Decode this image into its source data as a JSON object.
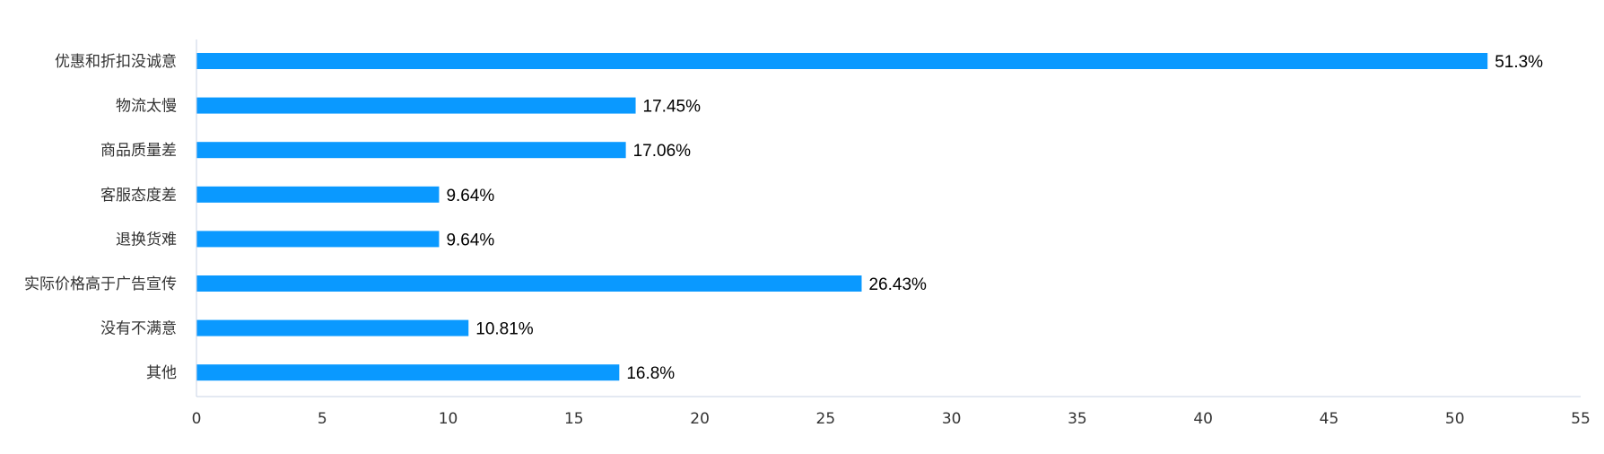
{
  "chart_data": {
    "type": "bar",
    "orientation": "horizontal",
    "categories": [
      "优惠和折扣没诚意",
      "物流太慢",
      "商品质量差",
      "客服态度差",
      "退换货难",
      "实际价格高于广告宣传",
      "没有不满意",
      "其他"
    ],
    "values": [
      51.3,
      17.45,
      17.06,
      9.64,
      9.64,
      26.43,
      10.81,
      16.8
    ],
    "value_labels": [
      "51.3%",
      "17.45%",
      "17.06%",
      "9.64%",
      "9.64%",
      "26.43%",
      "10.81%",
      "16.8%"
    ],
    "xlim": [
      0,
      55
    ],
    "xticks": [
      0,
      5,
      10,
      15,
      20,
      25,
      30,
      35,
      40,
      45,
      50,
      55
    ],
    "title": "",
    "xlabel": "",
    "ylabel": "",
    "grid": false,
    "legend": "none",
    "bar_color": "#0A99FF",
    "axis_color": "#C8D3E6"
  }
}
